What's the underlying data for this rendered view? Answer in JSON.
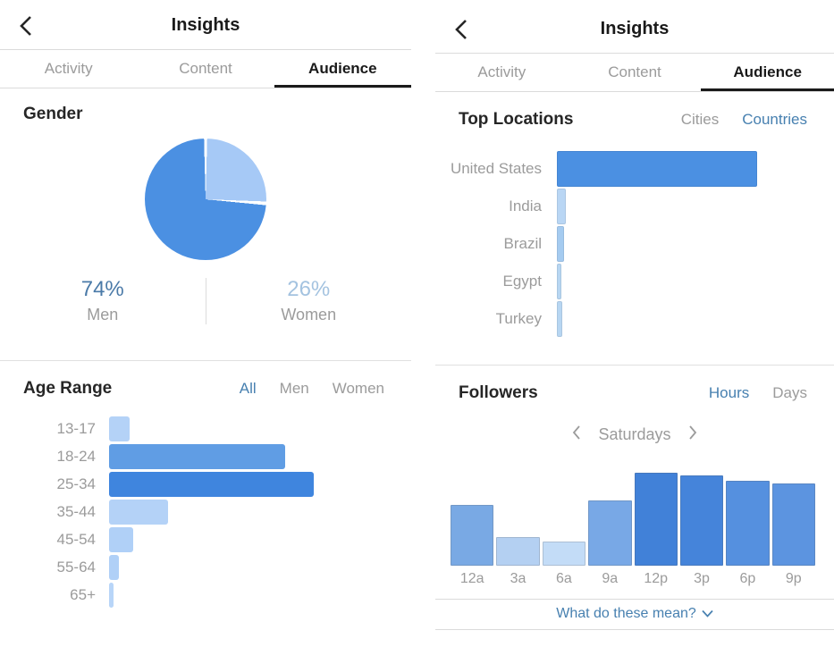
{
  "colors": {
    "accent_link": "#4780b0",
    "text_dark": "#262626",
    "text_gray": "#9b9b9b",
    "divider": "#dbdbdb",
    "pie_men": "#4b90e2",
    "pie_women": "#a6c9f6"
  },
  "left_screen": {
    "header": {
      "title": "Insights"
    },
    "tabs": [
      {
        "label": "Activity",
        "active": false
      },
      {
        "label": "Content",
        "active": false
      },
      {
        "label": "Audience",
        "active": true
      }
    ],
    "gender": {
      "title": "Gender",
      "pie": {
        "type": "pie",
        "slices": [
          {
            "label": "Men",
            "percent": 74,
            "color": "#4b90e2"
          },
          {
            "label": "Women",
            "percent": 26,
            "color": "#a6c9f6"
          }
        ]
      },
      "stats": [
        {
          "value": "74%",
          "label": "Men",
          "value_color": "#4a7aa8"
        },
        {
          "value": "26%",
          "label": "Women",
          "value_color": "#a4c3e0"
        }
      ]
    },
    "age_range": {
      "title": "Age Range",
      "filters": [
        {
          "label": "All",
          "active": true
        },
        {
          "label": "Men",
          "active": false
        },
        {
          "label": "Women",
          "active": false
        }
      ],
      "chart": {
        "type": "bar",
        "orientation": "horizontal",
        "categories": [
          "13-17",
          "18-24",
          "25-34",
          "35-44",
          "45-54",
          "55-64",
          "65+"
        ],
        "values": [
          10,
          86,
          100,
          29,
          12,
          5,
          2
        ],
        "max_value": 100,
        "bar_colors": [
          "#b4d2f7",
          "#609de4",
          "#3f85de",
          "#b4d2f7",
          "#b0d0f7",
          "#b0d0f7",
          "#b8d5f8"
        ]
      }
    }
  },
  "right_screen": {
    "header": {
      "title": "Insights"
    },
    "tabs": [
      {
        "label": "Activity",
        "active": false
      },
      {
        "label": "Content",
        "active": false
      },
      {
        "label": "Audience",
        "active": true
      }
    ],
    "top_locations": {
      "title": "Top Locations",
      "filters": [
        {
          "label": "Cities",
          "active": false
        },
        {
          "label": "Countries",
          "active": true
        }
      ],
      "chart": {
        "type": "bar",
        "orientation": "horizontal",
        "categories": [
          "United States",
          "India",
          "Brazil",
          "Egypt",
          "Turkey"
        ],
        "values": [
          100,
          4.5,
          3.6,
          2.2,
          2.7
        ],
        "max_value": 100,
        "bar_colors": [
          "#4b90e2",
          "#b9d6f4",
          "#a5cbf0",
          "#b7d6f2",
          "#b7d6f2"
        ]
      }
    },
    "followers": {
      "title": "Followers",
      "filters": [
        {
          "label": "Hours",
          "active": true
        },
        {
          "label": "Days",
          "active": false
        }
      ],
      "day_selector": {
        "label": "Saturdays",
        "prev_icon": "chevron-left",
        "next_icon": "chevron-right"
      },
      "chart": {
        "type": "bar",
        "orientation": "vertical",
        "categories": [
          "12a",
          "3a",
          "6a",
          "9a",
          "12p",
          "3p",
          "6p",
          "9p"
        ],
        "values": [
          65,
          31,
          26,
          70,
          100,
          97,
          91,
          88
        ],
        "max_value": 100,
        "bar_colors": [
          "#79a9e4",
          "#b4d0f2",
          "#c3dcf7",
          "#78a8e6",
          "#4181d8",
          "#4584da",
          "#5590df",
          "#5c94e0"
        ]
      }
    },
    "footer": {
      "link_label": "What do these mean?",
      "link_icon": "chevron-down"
    }
  }
}
